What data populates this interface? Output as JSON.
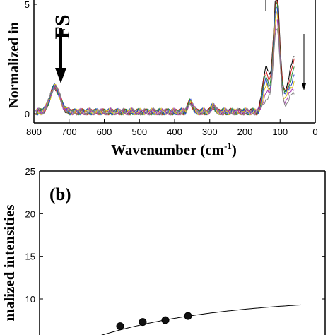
{
  "chart_data": [
    {
      "panel": "a",
      "type": "line",
      "xlabel": "Wavenumber (cm",
      "xlabel_sup": "-1",
      "xlabel_close": ")",
      "ylabel": "Normalized in",
      "annotation": "FS",
      "xlim": [
        800,
        0
      ],
      "ylim": [
        0,
        5
      ],
      "x_ticks": [
        "800",
        "700",
        "600",
        "500",
        "400",
        "300",
        "200",
        "100",
        "0"
      ],
      "y_ticks": [
        "0",
        "5"
      ],
      "series_colors": [
        "#000000",
        "#cc2222",
        "#2a8a2a",
        "#2244cc",
        "#d8c020",
        "#a83cb0",
        "#888888"
      ],
      "peaks": [
        {
          "x": 740,
          "y": 1.15
        },
        {
          "x": 355,
          "y": 0.45
        },
        {
          "x": 290,
          "y": 0.3
        },
        {
          "x": 140,
          "y": 2.15
        },
        {
          "x": 110,
          "y": 5.6
        }
      ]
    },
    {
      "panel": "b",
      "type": "scatter",
      "label": "(b)",
      "ylabel": "malized intensities",
      "ylim": [
        0,
        25
      ],
      "y_ticks": [
        "25",
        "20",
        "15",
        "10"
      ],
      "points": [
        {
          "x": 2,
          "y": 6.8
        },
        {
          "x": 3,
          "y": 7.3
        },
        {
          "x": 4,
          "y": 7.5
        },
        {
          "x": 5,
          "y": 8.0
        }
      ],
      "fit_line": true
    }
  ]
}
